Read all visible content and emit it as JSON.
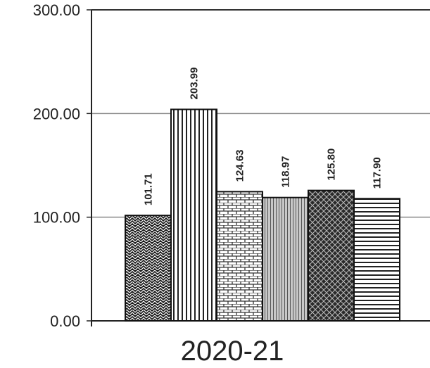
{
  "chart_data": {
    "type": "bar",
    "categories": [
      "2020-21"
    ],
    "series": [
      {
        "values": [
          101.71
        ],
        "label": "101.71",
        "pattern": "zigzag"
      },
      {
        "values": [
          203.99
        ],
        "label": "203.99",
        "pattern": "vertical-lines"
      },
      {
        "values": [
          124.63
        ],
        "label": "124.63",
        "pattern": "brick"
      },
      {
        "values": [
          118.97
        ],
        "label": "118.97",
        "pattern": "fine-vertical"
      },
      {
        "values": [
          125.8
        ],
        "label": "125.80",
        "pattern": "diamond"
      },
      {
        "values": [
          117.9
        ],
        "label": "117.90",
        "pattern": "horizontal-lines"
      }
    ],
    "yticks": [
      "0.00",
      "100.00",
      "200.00",
      "300.00"
    ],
    "ytick_values": [
      0,
      100,
      200,
      300
    ],
    "ylim": [
      0,
      300
    ],
    "grid": true,
    "title": "",
    "xlabel": "",
    "ylabel": ""
  }
}
